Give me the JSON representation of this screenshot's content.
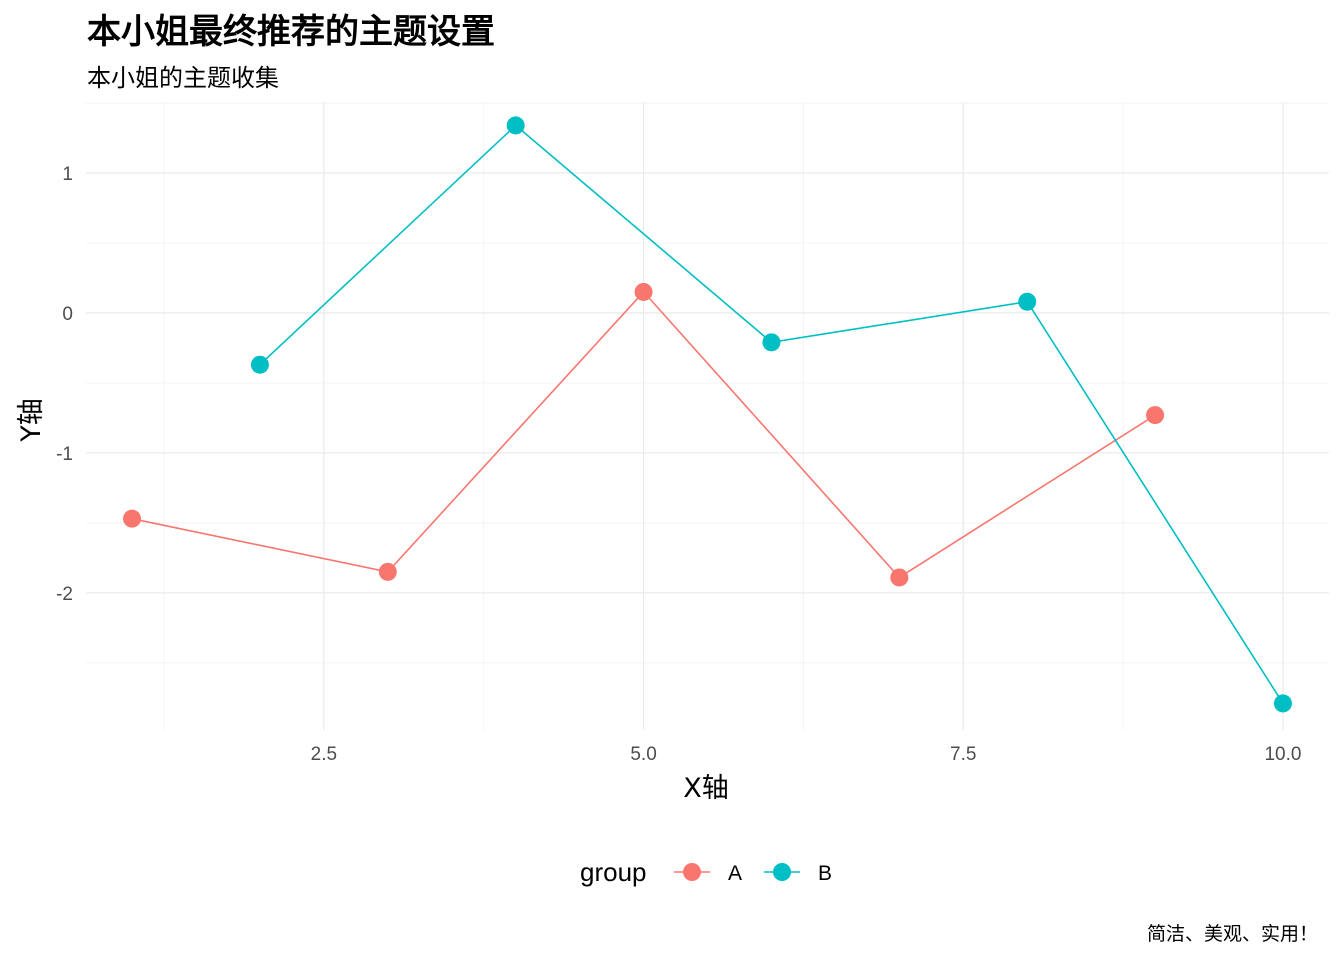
{
  "chart_data": {
    "type": "line",
    "title": "本小姐最终推荐的主题设置",
    "subtitle": "本小姐的主题收集",
    "caption": "简洁、美观、实用！",
    "xlabel": "X轴",
    "ylabel": "Y轴",
    "xlim": [
      0.64,
      10.36
    ],
    "ylim": [
      -2.98,
      1.5
    ],
    "x_ticks": [
      2.5,
      5.0,
      7.5,
      10.0
    ],
    "x_tick_labels": [
      "2.5",
      "5.0",
      "7.5",
      "10.0"
    ],
    "x_minor_ticks": [
      1.25,
      3.75,
      6.25,
      8.75
    ],
    "y_ticks": [
      1,
      0,
      -1,
      -2
    ],
    "y_tick_labels": [
      "1",
      "0",
      "-1",
      "-2"
    ],
    "y_minor_ticks": [
      1.5,
      0.5,
      -0.5,
      -1.5,
      -2.5
    ],
    "grid": true,
    "legend": {
      "title": "group",
      "position": "bottom"
    },
    "series": [
      {
        "name": "A",
        "color": "#F8766D",
        "x": [
          1,
          3,
          5,
          7,
          9
        ],
        "y": [
          -1.47,
          -1.85,
          0.15,
          -1.89,
          -0.73
        ]
      },
      {
        "name": "B",
        "color": "#00BFC4",
        "x": [
          2,
          4,
          6,
          8,
          10
        ],
        "y": [
          -0.37,
          1.34,
          -0.21,
          0.08,
          -2.79
        ]
      }
    ]
  }
}
